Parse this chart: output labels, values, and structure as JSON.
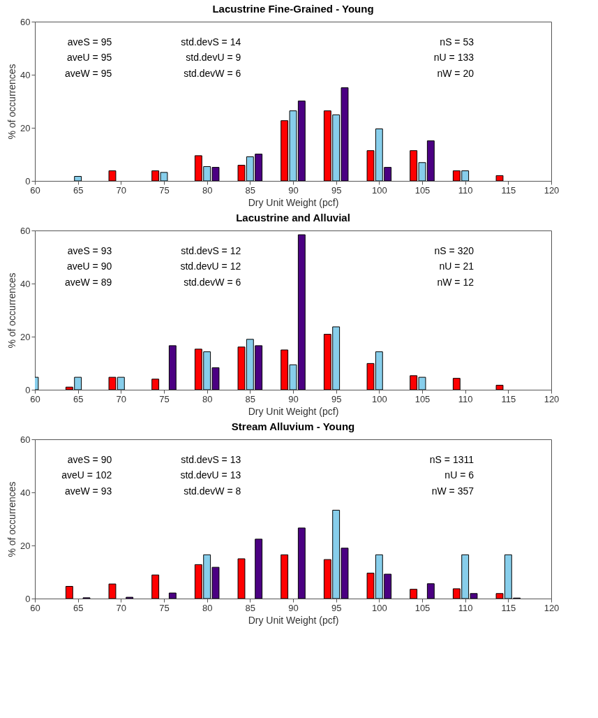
{
  "chart_data": [
    {
      "type": "bar",
      "title": "Lacustrine Fine-Grained - Young",
      "xlabel": "Dry Unit Weight (pcf)",
      "ylabel": "% of occurrences",
      "xlim": [
        60,
        120
      ],
      "ylim": [
        0,
        60
      ],
      "xticks": [
        60,
        65,
        70,
        75,
        80,
        85,
        90,
        95,
        100,
        105,
        110,
        115,
        120
      ],
      "yticks": [
        0,
        20,
        40,
        60
      ],
      "grid": false,
      "legend": false,
      "series": [
        {
          "color": "#ff0000",
          "x": [
            69,
            74,
            79,
            84,
            89,
            94,
            99,
            104,
            109,
            114
          ],
          "values": [
            3.8,
            3.8,
            9.5,
            5.9,
            22.7,
            26.4,
            11.4,
            11.4,
            3.8,
            2.0
          ]
        },
        {
          "color": "#87ceeb",
          "x": [
            65,
            75,
            80,
            85,
            90,
            95,
            100,
            105,
            110
          ],
          "values": [
            1.7,
            3.2,
            5.4,
            9.1,
            26.4,
            24.9,
            19.6,
            6.9,
            3.8
          ]
        },
        {
          "color": "#4b0082",
          "x": [
            81,
            86,
            91,
            96,
            101,
            106
          ],
          "values": [
            5.1,
            10.1,
            30.1,
            35.1,
            5.1,
            15.1
          ]
        }
      ],
      "annotations": [
        "aveS = 95",
        "aveU = 95",
        "aveW = 95",
        "std.devS = 14",
        "std.devU = 9",
        "std.devW = 6",
        "nS = 53",
        "nU = 133",
        "nW = 20"
      ]
    },
    {
      "type": "bar",
      "title": "Lacustrine and Alluvial",
      "xlabel": "Dry Unit Weight (pcf)",
      "ylabel": "% of occurrences",
      "xlim": [
        60,
        120
      ],
      "ylim": [
        0,
        60
      ],
      "xticks": [
        60,
        65,
        70,
        75,
        80,
        85,
        90,
        95,
        100,
        105,
        110,
        115,
        120
      ],
      "yticks": [
        0,
        20,
        40,
        60
      ],
      "grid": false,
      "legend": false,
      "series": [
        {
          "color": "#ff0000",
          "x": [
            64,
            69,
            74,
            79,
            84,
            89,
            94,
            99,
            104,
            109,
            114
          ],
          "values": [
            1.0,
            4.7,
            4.0,
            15.3,
            16.1,
            15.0,
            20.9,
            9.9,
            5.3,
            4.3,
            1.7
          ]
        },
        {
          "color": "#87ceeb",
          "x": [
            60,
            65,
            70,
            80,
            85,
            90,
            95,
            100,
            105
          ],
          "values": [
            4.7,
            4.7,
            4.7,
            14.3,
            19.0,
            9.4,
            23.7,
            14.3,
            4.7
          ]
        },
        {
          "color": "#4b0082",
          "x": [
            76,
            81,
            86,
            91
          ],
          "values": [
            16.6,
            8.3,
            16.6,
            58.4
          ]
        }
      ],
      "annotations": [
        "aveS = 93",
        "aveU = 90",
        "aveW = 89",
        "std.devS = 12",
        "std.devU = 12",
        "std.devW = 6",
        "nS = 320",
        "nU = 21",
        "nW = 12"
      ]
    },
    {
      "type": "bar",
      "title": "Stream Alluvium - Young",
      "xlabel": "Dry Unit Weight (pcf)",
      "ylabel": "% of occurrences",
      "xlim": [
        60,
        120
      ],
      "ylim": [
        0,
        60
      ],
      "xticks": [
        60,
        65,
        70,
        75,
        80,
        85,
        90,
        95,
        100,
        105,
        110,
        115,
        120
      ],
      "yticks": [
        0,
        20,
        40,
        60
      ],
      "grid": false,
      "legend": false,
      "series": [
        {
          "color": "#ff0000",
          "x": [
            64,
            69,
            74,
            79,
            84,
            89,
            94,
            99,
            104,
            109,
            114
          ],
          "values": [
            4.6,
            5.5,
            8.9,
            12.8,
            15.0,
            16.5,
            14.7,
            9.6,
            3.5,
            3.7,
            1.9
          ]
        },
        {
          "color": "#87ceeb",
          "x": [
            80,
            95,
            100,
            110,
            115
          ],
          "values": [
            16.5,
            33.3,
            16.5,
            16.5,
            16.5
          ]
        },
        {
          "color": "#4b0082",
          "x": [
            66,
            71,
            76,
            81,
            86,
            91,
            96,
            101,
            106,
            111,
            116
          ],
          "values": [
            0.3,
            0.5,
            2.1,
            11.8,
            22.4,
            26.6,
            19.0,
            9.2,
            5.6,
            1.9,
            0.2
          ]
        }
      ],
      "annotations": [
        "aveS = 90",
        "aveU = 102",
        "aveW = 93",
        "std.devS = 13",
        "std.devU = 13",
        "std.devW = 8",
        "nS = 1311",
        "nU = 6",
        "nW = 357"
      ]
    }
  ]
}
